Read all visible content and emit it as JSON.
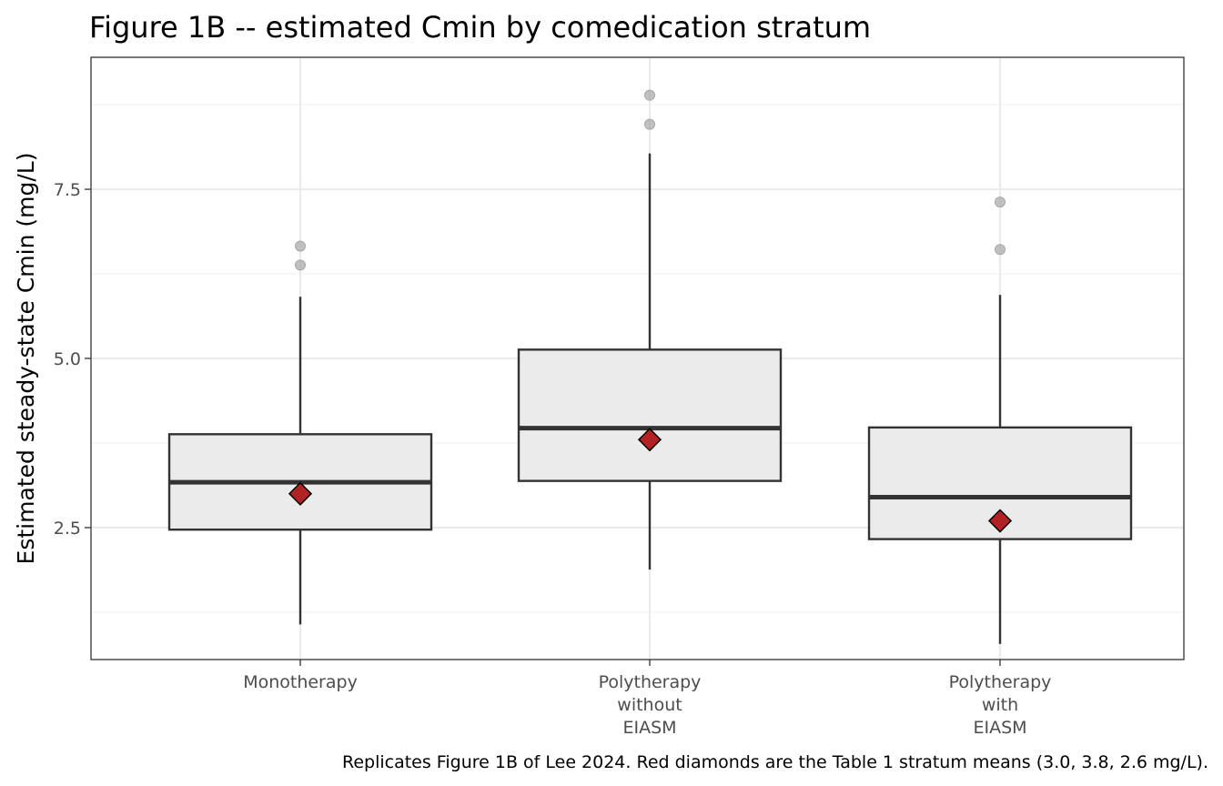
{
  "chart_data": {
    "type": "box",
    "title": "Figure 1B -- estimated Cmin by comedication stratum",
    "ylabel": "Estimated steady-state Cmin (mg/L)",
    "xlabel": "",
    "ylim": [
      0.55,
      9.45
    ],
    "yticks": [
      2.5,
      5.0,
      7.5
    ],
    "ytick_labels": [
      "2.5",
      "5.0",
      "7.5"
    ],
    "grid": true,
    "categories": [
      [
        "Monotherapy"
      ],
      [
        "Polytherapy",
        "without",
        "EIASM"
      ],
      [
        "Polytherapy",
        "with",
        "EIASM"
      ]
    ],
    "boxes": [
      {
        "whisker_low": 1.07,
        "q1": 2.47,
        "median": 3.17,
        "q3": 3.88,
        "whisker_high": 5.91,
        "outliers": [
          6.38,
          6.66
        ],
        "mean": 3.0
      },
      {
        "whisker_low": 1.88,
        "q1": 3.19,
        "median": 3.97,
        "q3": 5.13,
        "whisker_high": 8.03,
        "outliers": [
          8.46,
          8.89
        ],
        "mean": 3.8
      },
      {
        "whisker_low": 0.78,
        "q1": 2.33,
        "median": 2.95,
        "q3": 3.98,
        "whisker_high": 5.94,
        "outliers": [
          6.61,
          7.31
        ],
        "mean": 2.6
      }
    ],
    "caption": "Replicates Figure 1B of Lee 2024. Red diamonds are the Table 1 stratum means (3.0, 3.8, 2.6 mg/L).",
    "colors": {
      "box_fill": "#ebebeb",
      "box_line": "#333333",
      "mean_marker": "#b22222",
      "outlier": "#a6a6a6",
      "grid_major": "#ebebeb",
      "grid_minor": "#f2f2f2"
    }
  }
}
